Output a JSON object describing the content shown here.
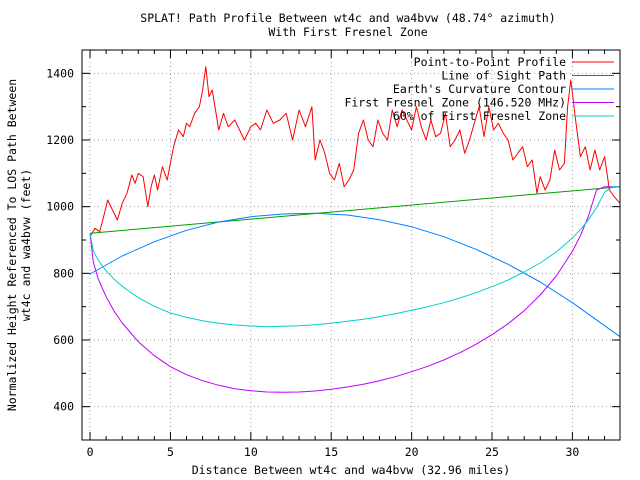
{
  "chart_data": {
    "type": "line",
    "title": "SPLAT! Path Profile Between wt4c and wa4bvw (48.74° azimuth)",
    "subtitle": "With First Fresnel Zone",
    "xlabel": "Distance Between wt4c and wa4bvw (32.96 miles)",
    "ylabel": [
      "Normalized Height Referenced To LOS Path Between",
      "wt4c and wa4bvw (feet)"
    ],
    "xlim": [
      -0.5,
      32.96
    ],
    "ylim": [
      300,
      1470
    ],
    "xticks": [
      0,
      5,
      10,
      15,
      20,
      25,
      30
    ],
    "yticks": [
      400,
      600,
      800,
      1000,
      1200,
      1400
    ],
    "grid": true,
    "legend_position": "top-right",
    "series": [
      {
        "name": "Point-to-Point Profile",
        "color": "#ff0000",
        "x": [
          0,
          0.3,
          0.6,
          0.9,
          1.1,
          1.4,
          1.7,
          2.0,
          2.3,
          2.6,
          2.8,
          3.0,
          3.3,
          3.6,
          3.8,
          4.0,
          4.2,
          4.5,
          4.8,
          5.0,
          5.2,
          5.5,
          5.8,
          6.0,
          6.2,
          6.5,
          6.8,
          7.0,
          7.2,
          7.4,
          7.6,
          7.8,
          8.0,
          8.3,
          8.6,
          9.0,
          9.3,
          9.6,
          10.0,
          10.3,
          10.6,
          11.0,
          11.4,
          11.8,
          12.2,
          12.6,
          13.0,
          13.4,
          13.8,
          14.0,
          14.3,
          14.6,
          14.9,
          15.2,
          15.5,
          15.8,
          16.1,
          16.4,
          16.7,
          17.0,
          17.3,
          17.6,
          17.9,
          18.2,
          18.5,
          18.8,
          19.1,
          19.4,
          19.7,
          20.0,
          20.3,
          20.6,
          20.9,
          21.2,
          21.5,
          21.8,
          22.1,
          22.4,
          22.7,
          23.0,
          23.3,
          23.6,
          23.9,
          24.2,
          24.5,
          24.8,
          25.1,
          25.4,
          25.7,
          26.0,
          26.3,
          26.6,
          26.9,
          27.2,
          27.5,
          27.8,
          28.0,
          28.3,
          28.6,
          28.9,
          29.2,
          29.5,
          29.7,
          29.9,
          30.2,
          30.5,
          30.8,
          31.1,
          31.4,
          31.7,
          32.0,
          32.3,
          32.6,
          32.96
        ],
        "y": [
          910,
          935,
          925,
          980,
          1020,
          990,
          960,
          1010,
          1040,
          1095,
          1070,
          1100,
          1090,
          1000,
          1060,
          1095,
          1050,
          1120,
          1080,
          1130,
          1180,
          1230,
          1210,
          1250,
          1240,
          1280,
          1300,
          1350,
          1420,
          1330,
          1350,
          1290,
          1230,
          1280,
          1240,
          1260,
          1230,
          1200,
          1240,
          1250,
          1230,
          1290,
          1250,
          1260,
          1280,
          1200,
          1290,
          1240,
          1300,
          1140,
          1200,
          1160,
          1100,
          1080,
          1130,
          1060,
          1080,
          1110,
          1220,
          1260,
          1200,
          1180,
          1260,
          1220,
          1200,
          1290,
          1240,
          1290,
          1260,
          1230,
          1300,
          1240,
          1200,
          1260,
          1210,
          1220,
          1280,
          1180,
          1200,
          1230,
          1160,
          1200,
          1250,
          1300,
          1210,
          1300,
          1230,
          1250,
          1220,
          1200,
          1140,
          1160,
          1180,
          1120,
          1140,
          1040,
          1090,
          1050,
          1080,
          1170,
          1110,
          1130,
          1300,
          1380,
          1260,
          1150,
          1180,
          1110,
          1170,
          1110,
          1150,
          1050,
          1030,
          1010
        ]
      },
      {
        "name": "Line of Sight Path",
        "color": "#00a000",
        "x": [
          0,
          32.96
        ],
        "y": [
          920,
          1060
        ]
      },
      {
        "name": "Earth's Curvature Contour",
        "color": "#0080ff",
        "x": [
          0,
          2,
          4,
          6,
          8,
          10,
          12,
          14,
          16,
          18,
          20,
          22,
          24,
          26,
          28,
          30,
          32,
          32.96
        ],
        "y": [
          798,
          852,
          895,
          929,
          954,
          970,
          978,
          980,
          975,
          961,
          940,
          910,
          872,
          827,
          774,
          712,
          643,
          610
        ]
      },
      {
        "name": "First Fresnel Zone (146.520 MHz)",
        "color": "#c000ff",
        "x": [
          0,
          0.2,
          0.5,
          1,
          1.5,
          2,
          3,
          4,
          5,
          6,
          7,
          8,
          9,
          10,
          11,
          12,
          13,
          14,
          15,
          16,
          17,
          18,
          19,
          20,
          21,
          22,
          23,
          24,
          25,
          26,
          27,
          28,
          29,
          30,
          30.5,
          31,
          31.5,
          32,
          32.5,
          32.8,
          32.96
        ],
        "y": [
          920,
          834,
          784,
          730,
          686,
          651,
          595,
          553,
          520,
          496,
          478,
          464,
          454,
          448,
          444,
          443,
          444,
          447,
          452,
          459,
          467,
          478,
          490,
          505,
          521,
          540,
          562,
          587,
          616,
          649,
          688,
          735,
          792,
          866,
          913,
          972,
          1050,
          1060,
          1060,
          1060,
          1060
        ]
      },
      {
        "name": "60% of First Fresnel Zone",
        "color": "#00d0d0",
        "x": [
          0,
          0.2,
          0.5,
          1,
          1.5,
          2,
          3,
          4,
          5,
          6,
          7,
          8,
          9,
          10,
          11,
          12,
          13,
          14,
          15,
          16,
          17,
          18,
          19,
          20,
          21,
          22,
          23,
          24,
          25,
          26,
          27,
          28,
          29,
          30,
          30.5,
          31,
          31.5,
          32,
          32.5,
          32.8,
          32.96
        ],
        "y": [
          920,
          868,
          840,
          808,
          782,
          761,
          727,
          701,
          681,
          668,
          658,
          650,
          645,
          642,
          640,
          641,
          643,
          646,
          650,
          656,
          662,
          670,
          679,
          689,
          700,
          712,
          726,
          742,
          760,
          780,
          804,
          831,
          864,
          906,
          931,
          961,
          997,
          1043,
          1060,
          1060,
          1060
        ]
      }
    ]
  }
}
